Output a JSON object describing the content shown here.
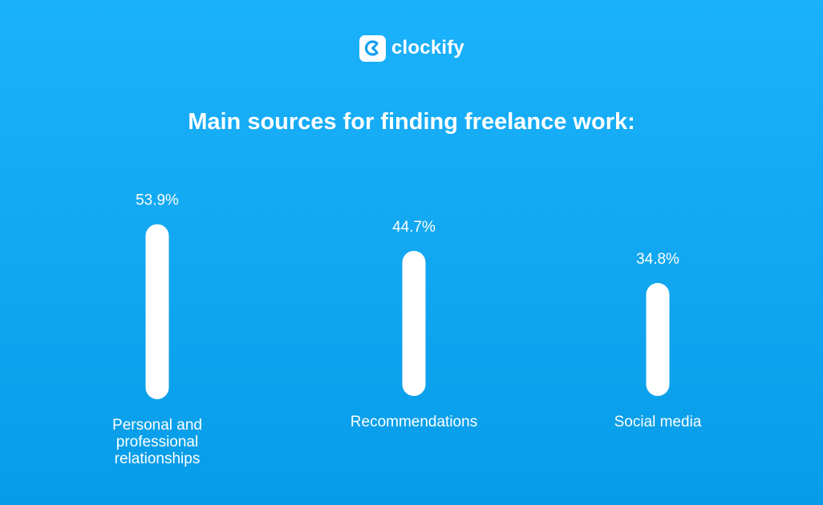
{
  "brand": {
    "name": "clockify",
    "logo_icon": "clockify-logo-icon"
  },
  "colors": {
    "background_top": "#1bb2fb",
    "background_bottom": "#069ce8",
    "bar": "#ffffff",
    "text": "#ffffff",
    "logo_glyph": "#129ff0"
  },
  "chart_data": {
    "type": "bar",
    "title": "Main sources for finding freelance work:",
    "categories": [
      "Personal and professional relationships",
      "Recommendations",
      "Social media"
    ],
    "values": [
      53.9,
      44.7,
      34.8
    ],
    "data_labels": [
      "53.9%",
      "44.7%",
      "34.8%"
    ],
    "category_label_lines": [
      [
        "Personal and",
        "professional",
        "relationships"
      ],
      [
        "Recommendations"
      ],
      [
        "Social media"
      ]
    ],
    "unit": "%",
    "grid": false,
    "legend": "none"
  }
}
